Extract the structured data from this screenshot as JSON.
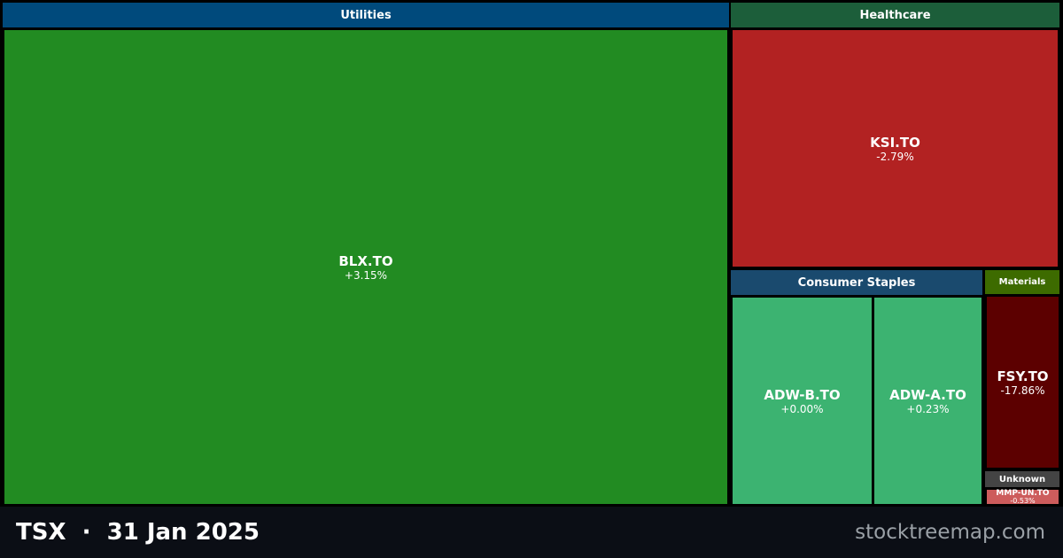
{
  "sectors": [
    {
      "name": "Utilities",
      "color": "#004a7c",
      "stocks": [
        {
          "ticker": "BLX.TO",
          "change": "+3.15%",
          "color": "#228b22"
        }
      ]
    },
    {
      "name": "Healthcare",
      "color": "#1c5e3a",
      "stocks": [
        {
          "ticker": "KSI.TO",
          "change": "-2.79%",
          "color": "#b22222"
        }
      ]
    },
    {
      "name": "Consumer Staples",
      "color": "#1a4a6e",
      "stocks": [
        {
          "ticker": "ADW-B.TO",
          "change": "+0.00%",
          "color": "#3cb371"
        },
        {
          "ticker": "ADW-A.TO",
          "change": "+0.23%",
          "color": "#3cb371"
        }
      ]
    },
    {
      "name": "Materials",
      "color": "#3d6b00",
      "stocks": [
        {
          "ticker": "FSY.TO",
          "change": "-17.86%",
          "color": "#5c0000"
        }
      ]
    },
    {
      "name": "Unknown",
      "color": "#444444",
      "stocks": [
        {
          "ticker": "MMP-UN.TO",
          "change": "-0.53%",
          "color": "#cd5c5c"
        }
      ]
    }
  ],
  "footer": {
    "exchange": "TSX",
    "date": "31 Jan 2025",
    "site": "stocktreemap.com"
  }
}
